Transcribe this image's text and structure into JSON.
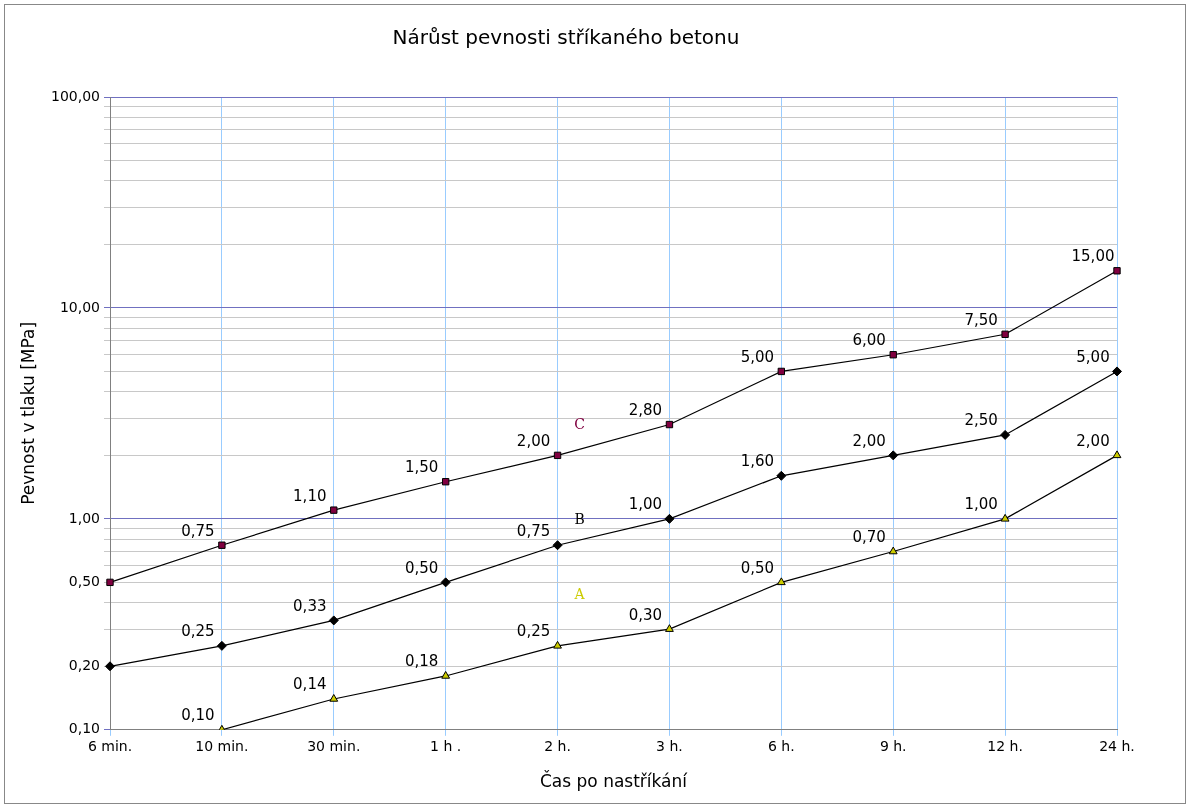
{
  "chart_data": {
    "type": "line",
    "title": "Nárůst pevnosti stříkaného betonu",
    "xlabel": "Čas po nastříkání",
    "ylabel": "Pevnost v tlaku [MPa]",
    "categories": [
      "6 min.",
      "10 min.",
      "30 min.",
      "1 h .",
      "2 h.",
      "3 h.",
      "6 h.",
      "9 h.",
      "12 h.",
      "24 h."
    ],
    "series": [
      {
        "name": "C",
        "color": "#800040",
        "marker": "square",
        "values": [
          0.5,
          0.75,
          1.1,
          1.5,
          2,
          2.8,
          5,
          6,
          7.5,
          15
        ],
        "value_labels": [
          null,
          "0,75",
          "1,10",
          "1,50",
          "2,00",
          "2,80",
          "5,00",
          "6,00",
          "7,50",
          "15,00"
        ]
      },
      {
        "name": "B",
        "color": "#000000",
        "marker": "diamond",
        "values": [
          0.2,
          0.25,
          0.33,
          0.5,
          0.75,
          1,
          1.6,
          2,
          2.5,
          5
        ],
        "value_labels": [
          null,
          "0,25",
          "0,33",
          "0,50",
          "0,75",
          "1,00",
          "1,60",
          "2,00",
          "2,50",
          "5,00"
        ]
      },
      {
        "name": "A",
        "color": "#cccc00",
        "marker": "triangle",
        "values": [
          null,
          0.1,
          0.14,
          0.18,
          0.25,
          0.3,
          0.5,
          0.7,
          1,
          2
        ],
        "value_labels": [
          null,
          "0,10",
          "0,14",
          "0,18",
          "0,25",
          "0,30",
          "0,50",
          "0,70",
          "1,00",
          "2,00"
        ]
      }
    ],
    "log": true,
    "ylim": [
      0.1,
      100
    ],
    "yticks": [
      {
        "value": 0.1,
        "label": "0,10"
      },
      {
        "value": 0.2,
        "label": "0,20"
      },
      {
        "value": 0.3,
        "label": null
      },
      {
        "value": 0.4,
        "label": null
      },
      {
        "value": 0.5,
        "label": "0,50"
      },
      {
        "value": 0.6,
        "label": null
      },
      {
        "value": 0.7,
        "label": null
      },
      {
        "value": 0.8,
        "label": null
      },
      {
        "value": 0.9,
        "label": null
      },
      {
        "value": 1,
        "label": "1,00"
      },
      {
        "value": 2,
        "label": null
      },
      {
        "value": 3,
        "label": null
      },
      {
        "value": 4,
        "label": null
      },
      {
        "value": 5,
        "label": null
      },
      {
        "value": 6,
        "label": null
      },
      {
        "value": 7,
        "label": null
      },
      {
        "value": 8,
        "label": null
      },
      {
        "value": 9,
        "label": null
      },
      {
        "value": 10,
        "label": "10,00"
      },
      {
        "value": 20,
        "label": null
      },
      {
        "value": 30,
        "label": null
      },
      {
        "value": 40,
        "label": null
      },
      {
        "value": 50,
        "label": null
      },
      {
        "value": 60,
        "label": null
      },
      {
        "value": 70,
        "label": null
      },
      {
        "value": 80,
        "label": null
      },
      {
        "value": 90,
        "label": null
      },
      {
        "value": 100,
        "label": "100,00"
      }
    ],
    "grid": true,
    "legend": false,
    "line_style": "solid"
  }
}
